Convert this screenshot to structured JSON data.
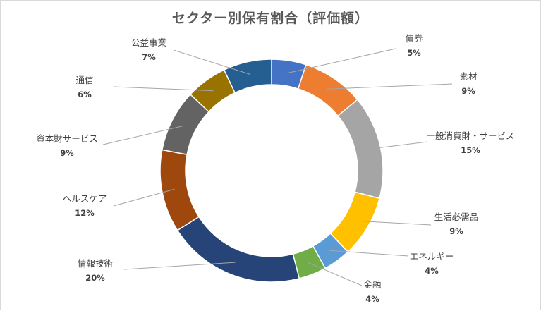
{
  "chart_data": {
    "type": "pie",
    "variant": "doughnut",
    "title": "セクター別保有割合（評価額）",
    "legend": "none",
    "slices": [
      {
        "label": "債券",
        "value": 5,
        "value_label": "5%",
        "color": "#4472C4"
      },
      {
        "label": "素材",
        "value": 9,
        "value_label": "9%",
        "color": "#ED7D31"
      },
      {
        "label": "一般消費財・サービス",
        "value": 15,
        "value_label": "15%",
        "color": "#A5A5A5"
      },
      {
        "label": "生活必需品",
        "value": 9,
        "value_label": "9%",
        "color": "#FFC000"
      },
      {
        "label": "エネルギー",
        "value": 4,
        "value_label": "4%",
        "color": "#5B9BD5"
      },
      {
        "label": "金融",
        "value": 4,
        "value_label": "4%",
        "color": "#70AD47"
      },
      {
        "label": "情報技術",
        "value": 20,
        "value_label": "20%",
        "color": "#264478"
      },
      {
        "label": "ヘルスケア",
        "value": 12,
        "value_label": "12%",
        "color": "#9E480E"
      },
      {
        "label": "資本財サービス",
        "value": 9,
        "value_label": "9%",
        "color": "#636363"
      },
      {
        "label": "通信",
        "value": 6,
        "value_label": "6%",
        "color": "#997300"
      },
      {
        "label": "公益事業",
        "value": 7,
        "value_label": "7%",
        "color": "#255E91"
      }
    ]
  }
}
